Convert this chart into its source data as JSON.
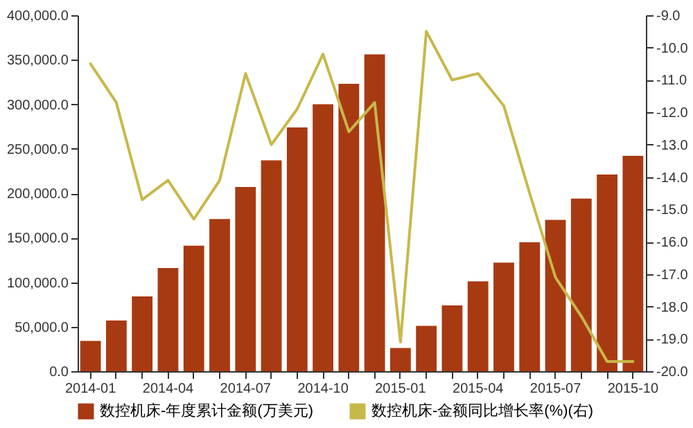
{
  "chart_data": {
    "type": "bar",
    "categories": [
      "2014-01",
      null,
      null,
      "2014-04",
      null,
      null,
      "2014-07",
      null,
      null,
      "2014-10",
      null,
      null,
      "2015-01",
      null,
      null,
      "2015-04",
      null,
      null,
      "2015-07",
      null,
      null,
      "2015-10"
    ],
    "series": [
      {
        "name": "数控机床-年度累计金额(万美元)",
        "color": "#a83a12",
        "values": [
          34000,
          57000,
          84000,
          116000,
          141000,
          171000,
          207000,
          237000,
          274000,
          300000,
          323000,
          356000,
          26000,
          51000,
          74000,
          101000,
          122000,
          145000,
          170000,
          194000,
          221000,
          242000
        ]
      },
      {
        "name": "数控机床-金额同比增长率(%)(右)",
        "type": "line",
        "axis": "y2",
        "color": "#c8b84a",
        "values": [
          -10.5,
          -11.7,
          -14.7,
          -14.1,
          -15.3,
          -14.1,
          -10.8,
          -13.0,
          -11.9,
          -10.2,
          -12.6,
          -11.7,
          -19.1,
          -9.5,
          -11.0,
          -10.8,
          -11.8,
          -14.5,
          -17.1,
          -18.3,
          -19.7,
          -19.7
        ]
      }
    ],
    "ylim": [
      0,
      400000
    ],
    "yticks": [
      {
        "value": 0,
        "label": "0.0"
      },
      {
        "value": 50000,
        "label": "50,000.0"
      },
      {
        "value": 100000,
        "label": "100,000.0"
      },
      {
        "value": 150000,
        "label": "150,000.0"
      },
      {
        "value": 200000,
        "label": "200,000.0"
      },
      {
        "value": 250000,
        "label": "250,000.0"
      },
      {
        "value": 300000,
        "label": "300,000.0"
      },
      {
        "value": 350000,
        "label": "350,000.0"
      },
      {
        "value": 400000,
        "label": "400,000.0"
      }
    ],
    "y2lim": [
      -20,
      -9
    ],
    "y2ticks": [
      {
        "value": -20,
        "label": "-20.0"
      },
      {
        "value": -19,
        "label": "-19.0"
      },
      {
        "value": -18,
        "label": "-18.0"
      },
      {
        "value": -17,
        "label": "-17.0"
      },
      {
        "value": -16,
        "label": "-16.0"
      },
      {
        "value": -15,
        "label": "-15.0"
      },
      {
        "value": -14,
        "label": "-14.0"
      },
      {
        "value": -13,
        "label": "-13.0"
      },
      {
        "value": -12,
        "label": "-12.0"
      },
      {
        "value": -11,
        "label": "-11.0"
      },
      {
        "value": -10,
        "label": "-10.0"
      },
      {
        "value": -9,
        "label": "-9.0"
      }
    ],
    "legend": "bottom",
    "grid": false
  }
}
